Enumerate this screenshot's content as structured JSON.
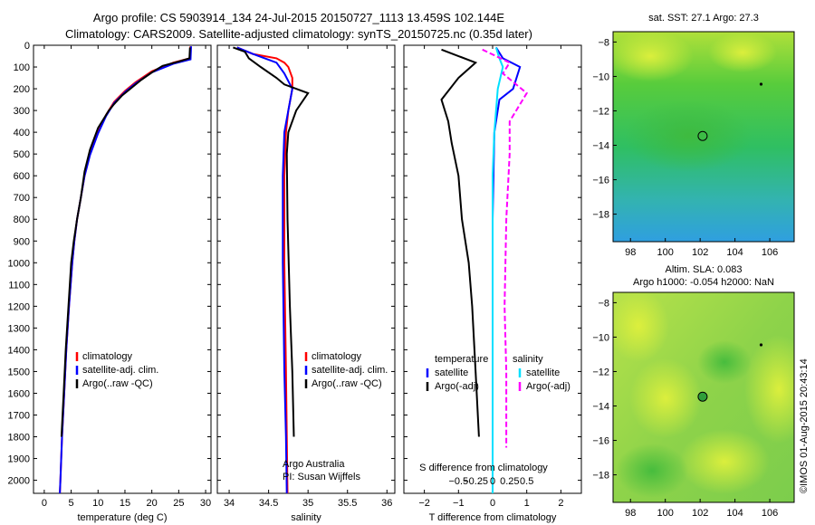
{
  "header": {
    "line1": "Argo profile: CS 5903914_134 24-Jul-2015 20150727_1113 13.459S 102.144E",
    "line2": "Climatology: CARS2009. Satellite-adjusted climatology: synTS_20150725.nc (0.35d later)"
  },
  "colors": {
    "climatology": "#ff0000",
    "satellite": "#0000ff",
    "argo": "#000000",
    "satellite_cyan": "#00e0ff",
    "argo_magenta": "#ff00ff"
  },
  "chart_data": [
    {
      "type": "line",
      "id": "temperature",
      "xlabel": "temperature (deg C)",
      "ylabel": "",
      "xlim": [
        -2,
        31
      ],
      "ylim": [
        2060,
        0
      ],
      "xticks": [
        0,
        5,
        10,
        15,
        20,
        25,
        30
      ],
      "yticks": [
        0,
        100,
        200,
        300,
        400,
        500,
        600,
        700,
        800,
        900,
        1000,
        1100,
        1200,
        1300,
        1400,
        1500,
        1600,
        1700,
        1800,
        1900,
        2000
      ],
      "legend": [
        "climatology",
        "satellite-adj. clim.",
        "Argo(..raw -QC)"
      ],
      "series": [
        {
          "name": "climatology",
          "color": "#ff0000",
          "points": [
            [
              27.2,
              5
            ],
            [
              27.1,
              60
            ],
            [
              24,
              80
            ],
            [
              20,
              120
            ],
            [
              17,
              170
            ],
            [
              15,
              210
            ],
            [
              13,
              260
            ],
            [
              11.5,
              320
            ],
            [
              10,
              400
            ],
            [
              8.5,
              500
            ],
            [
              7.5,
              600
            ],
            [
              6.8,
              700
            ],
            [
              6.1,
              800
            ],
            [
              5.6,
              900
            ],
            [
              5.2,
              1000
            ],
            [
              4.6,
              1200
            ],
            [
              4.1,
              1400
            ],
            [
              3.7,
              1600
            ],
            [
              3.3,
              1800
            ],
            [
              3.0,
              2000
            ],
            [
              2.9,
              2060
            ]
          ]
        },
        {
          "name": "satellite-adj. clim.",
          "color": "#0000ff",
          "points": [
            [
              27.3,
              5
            ],
            [
              27.2,
              65
            ],
            [
              24,
              85
            ],
            [
              20,
              125
            ],
            [
              17,
              175
            ],
            [
              15,
              215
            ],
            [
              13,
              265
            ],
            [
              11.5,
              325
            ],
            [
              10,
              405
            ],
            [
              8.5,
              505
            ],
            [
              7.5,
              600
            ],
            [
              6.8,
              700
            ],
            [
              6.1,
              800
            ],
            [
              5.6,
              900
            ],
            [
              5.2,
              1000
            ],
            [
              4.6,
              1200
            ],
            [
              4.1,
              1400
            ],
            [
              3.7,
              1600
            ],
            [
              3.3,
              1800
            ],
            [
              3.0,
              2000
            ],
            [
              2.9,
              2060
            ]
          ]
        },
        {
          "name": "Argo(..raw -QC)",
          "color": "#000000",
          "points": [
            [
              27.1,
              10
            ],
            [
              27.0,
              60
            ],
            [
              25,
              75
            ],
            [
              22,
              95
            ],
            [
              20,
              125
            ],
            [
              18,
              160
            ],
            [
              16,
              200
            ],
            [
              14.5,
              230
            ],
            [
              13,
              270
            ],
            [
              12,
              300
            ],
            [
              10,
              380
            ],
            [
              8.5,
              480
            ],
            [
              7.5,
              580
            ],
            [
              6.8,
              700
            ],
            [
              6.1,
              800
            ],
            [
              5.5,
              900
            ],
            [
              5.0,
              1000
            ],
            [
              4.5,
              1200
            ],
            [
              4.0,
              1400
            ],
            [
              3.6,
              1600
            ],
            [
              3.2,
              1800
            ]
          ]
        }
      ]
    },
    {
      "type": "line",
      "id": "salinity",
      "xlabel": "salinity",
      "ylabel": "",
      "xlim": [
        33.85,
        36.1
      ],
      "ylim": [
        2060,
        0
      ],
      "xticks": [
        34,
        34.5,
        35,
        35.5,
        36
      ],
      "legend": [
        "climatology",
        "satellite-adj. clim.",
        "Argo(..raw -QC)"
      ],
      "annotation": [
        "Argo Australia",
        "PI: Susan Wijffels"
      ],
      "series": [
        {
          "name": "climatology",
          "color": "#ff0000",
          "points": [
            [
              34.1,
              10
            ],
            [
              34.3,
              40
            ],
            [
              34.6,
              60
            ],
            [
              34.7,
              80
            ],
            [
              34.75,
              100
            ],
            [
              34.8,
              150
            ],
            [
              34.8,
              200
            ],
            [
              34.75,
              300
            ],
            [
              34.72,
              400
            ],
            [
              34.7,
              600
            ],
            [
              34.7,
              1000
            ],
            [
              34.72,
              1500
            ],
            [
              34.73,
              1800
            ],
            [
              34.74,
              2060
            ]
          ]
        },
        {
          "name": "satellite-adj. clim.",
          "color": "#0000ff",
          "points": [
            [
              34.1,
              10
            ],
            [
              34.3,
              40
            ],
            [
              34.6,
              80
            ],
            [
              34.7,
              130
            ],
            [
              34.8,
              200
            ],
            [
              34.75,
              300
            ],
            [
              34.7,
              400
            ],
            [
              34.68,
              600
            ],
            [
              34.68,
              1000
            ],
            [
              34.7,
              1500
            ],
            [
              34.72,
              1800
            ],
            [
              34.73,
              2060
            ]
          ]
        },
        {
          "name": "Argo(..raw -QC)",
          "color": "#000000",
          "points": [
            [
              34.05,
              10
            ],
            [
              34.2,
              30
            ],
            [
              34.25,
              60
            ],
            [
              34.4,
              100
            ],
            [
              34.6,
              150
            ],
            [
              34.7,
              180
            ],
            [
              35.0,
              220
            ],
            [
              34.85,
              300
            ],
            [
              34.75,
              400
            ],
            [
              34.73,
              500
            ],
            [
              34.74,
              800
            ],
            [
              34.77,
              1200
            ],
            [
              34.8,
              1500
            ],
            [
              34.82,
              1800
            ]
          ]
        }
      ]
    },
    {
      "type": "line",
      "id": "difference",
      "xlabel": "T difference from climatology",
      "xlabel_top": "S difference from climatology",
      "xlim": [
        -2.6,
        2.6
      ],
      "ylim": [
        2060,
        0
      ],
      "xticks": [
        -2,
        -1,
        0,
        1,
        2
      ],
      "xticks_top": [
        -0.5,
        -0.25,
        0,
        0.25,
        0.5
      ],
      "legend": {
        "temperature": [
          "satellite",
          "Argo(-adj)"
        ],
        "salinity": [
          "satellite",
          "Argo(-adj)"
        ]
      },
      "series": [
        {
          "name": "T satellite",
          "color": "#0000ff",
          "points": [
            [
              0.1,
              10
            ],
            [
              0.3,
              60
            ],
            [
              0.8,
              100
            ],
            [
              0.6,
              200
            ],
            [
              0.2,
              250
            ],
            [
              0.05,
              400
            ],
            [
              0,
              800
            ],
            [
              0,
              2060
            ]
          ]
        },
        {
          "name": "T Argo(-adj)",
          "color": "#000000",
          "points": [
            [
              -1.5,
              20
            ],
            [
              -0.5,
              80
            ],
            [
              -1.0,
              150
            ],
            [
              -1.5,
              250
            ],
            [
              -1.3,
              350
            ],
            [
              -1.2,
              450
            ],
            [
              -1.0,
              600
            ],
            [
              -0.9,
              800
            ],
            [
              -0.7,
              1000
            ],
            [
              -0.6,
              1200
            ],
            [
              -0.5,
              1500
            ],
            [
              -0.4,
              1800
            ]
          ]
        },
        {
          "name": "S satellite",
          "color": "#00e0ff",
          "points": [
            [
              0.1,
              10
            ],
            [
              0.2,
              60
            ],
            [
              0.3,
              100
            ],
            [
              0.15,
              200
            ],
            [
              0.05,
              400
            ],
            [
              0,
              600
            ],
            [
              0,
              2060
            ]
          ]
        },
        {
          "name": "S Argo(-adj)",
          "color": "#ff00ff",
          "points": [
            [
              -0.3,
              20
            ],
            [
              0.5,
              80
            ],
            [
              0.3,
              130
            ],
            [
              1.0,
              220
            ],
            [
              0.5,
              350
            ],
            [
              0.5,
              500
            ],
            [
              0.4,
              800
            ],
            [
              0.35,
              1200
            ],
            [
              0.4,
              1500
            ],
            [
              0.4,
              1850
            ]
          ]
        }
      ]
    },
    {
      "type": "heatmap",
      "id": "sst-map",
      "title": "sat. SST: 27.1  Argo: 27.3",
      "xlim": [
        97,
        107.4
      ],
      "ylim": [
        -19.6,
        -7.4
      ],
      "xticks": [
        98,
        100,
        102,
        104,
        106
      ],
      "yticks": [
        -8,
        -10,
        -12,
        -14,
        -16,
        -18
      ],
      "markers": [
        [
          102.144,
          -13.459
        ],
        [
          105.5,
          -10.45
        ]
      ]
    },
    {
      "type": "heatmap",
      "id": "sla-map",
      "title": [
        "Altim. SLA: 0.083",
        "Argo h1000: -0.054  h2000: NaN"
      ],
      "xlim": [
        97,
        107.4
      ],
      "ylim": [
        -19.6,
        -7.4
      ],
      "xticks": [
        98,
        100,
        102,
        104,
        106
      ],
      "yticks": [
        -8,
        -10,
        -12,
        -14,
        -16,
        -18
      ],
      "markers": [
        [
          102.144,
          -13.459
        ],
        [
          105.5,
          -10.45
        ]
      ]
    }
  ],
  "credit": "©IMOS 01-Aug-2015 20:43:14"
}
